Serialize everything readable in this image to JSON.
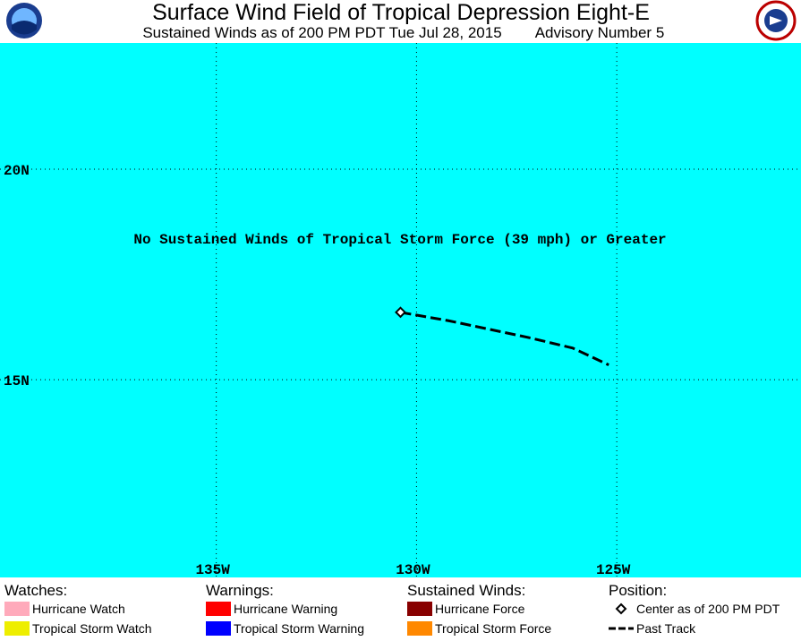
{
  "header": {
    "title": "Surface Wind Field of Tropical Depression Eight-E",
    "subtitle": "Sustained Winds as of 200 PM PDT Tue Jul 28, 2015",
    "advisory": "Advisory Number 5"
  },
  "map": {
    "lonlim": [
      -140.4,
      -120.4
    ],
    "latlim": [
      10.3,
      23.0
    ],
    "lonticks": [
      {
        "value": -135,
        "label": "135W"
      },
      {
        "value": -130,
        "label": "130W"
      },
      {
        "value": -125,
        "label": "125W"
      }
    ],
    "latticks": [
      {
        "value": 20,
        "label": "20N"
      },
      {
        "value": 15,
        "label": "15N"
      }
    ],
    "message": "No Sustained Winds of Tropical Storm Force (39 mph) or Greater",
    "center": [
      -130.4,
      16.6
    ],
    "track": [
      [
        -130.4,
        16.6
      ],
      [
        -129.2,
        16.4
      ],
      [
        -127.2,
        16.0
      ],
      [
        -126.1,
        15.75
      ],
      [
        -125.2,
        15.35
      ]
    ]
  },
  "legend": [
    {
      "heading": "Watches:",
      "items": [
        {
          "label": "Hurricane Watch",
          "color": "#ffaabb"
        },
        {
          "label": "Tropical Storm Watch",
          "color": "#eeee00"
        }
      ]
    },
    {
      "heading": "Warnings:",
      "items": [
        {
          "label": "Hurricane Warning",
          "color": "#ff0000"
        },
        {
          "label": "Tropical Storm Warning",
          "color": "#0000ff"
        }
      ]
    },
    {
      "heading": "Sustained Winds:",
      "items": [
        {
          "label": "Hurricane Force",
          "color": "#880000"
        },
        {
          "label": "Tropical Storm Force",
          "color": "#ff8800"
        }
      ]
    },
    {
      "heading": "Position:",
      "items": [
        {
          "label": "Center as of 200 PM PDT",
          "symbol": "diamond"
        },
        {
          "label": "Past Track",
          "symbol": "dash"
        }
      ]
    }
  ]
}
